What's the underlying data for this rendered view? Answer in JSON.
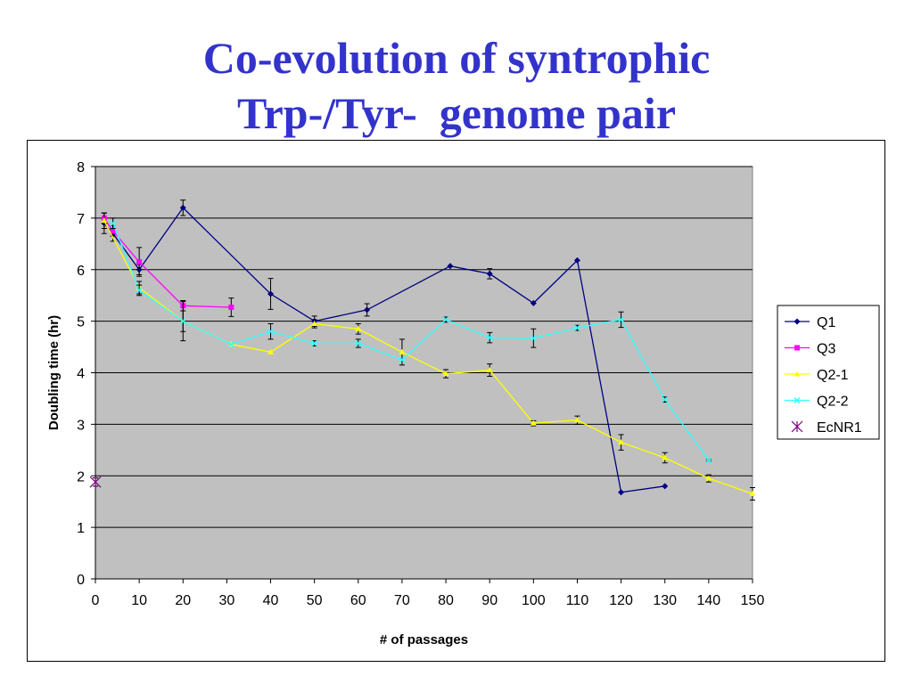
{
  "slide": {
    "title_line1": "Co-evolution of syntrophic",
    "title_line2": "Trp-/Tyr-  genome pair",
    "title_color": "#3333cc"
  },
  "chart_data": {
    "type": "line",
    "title": "",
    "xlabel": "# of passages",
    "ylabel": "Doubling time (hr)",
    "xlim": [
      0,
      150
    ],
    "ylim": [
      0,
      8
    ],
    "x_ticks": [
      0,
      10,
      20,
      30,
      40,
      50,
      60,
      70,
      80,
      90,
      100,
      110,
      120,
      130,
      140,
      150
    ],
    "y_ticks": [
      0,
      1,
      2,
      3,
      4,
      5,
      6,
      7,
      8
    ],
    "grid": "horizontal major lines",
    "plot_background": "#c0c0c0",
    "legend_position": "right",
    "series": [
      {
        "name": "Q1",
        "color": "#000080",
        "marker": "diamond",
        "points": [
          [
            2,
            6.9
          ],
          [
            4,
            6.7
          ],
          [
            10,
            6.0
          ],
          [
            20,
            7.2
          ],
          [
            40,
            5.53
          ],
          [
            50,
            5.0
          ],
          [
            62,
            5.22
          ],
          [
            81,
            6.07
          ],
          [
            90,
            5.92
          ],
          [
            100,
            5.35
          ],
          [
            110,
            6.18
          ],
          [
            120,
            1.68
          ],
          [
            130,
            1.8
          ]
        ],
        "errors": [
          0.2,
          0.15,
          0.1,
          0.15,
          0.3,
          0.1,
          0.12,
          0,
          0.1,
          0,
          0,
          0,
          0
        ]
      },
      {
        "name": "Q3",
        "color": "#ff00ff",
        "marker": "square",
        "points": [
          [
            2,
            7.0
          ],
          [
            4,
            6.75
          ],
          [
            10,
            6.15
          ],
          [
            20,
            5.3
          ],
          [
            31,
            5.27
          ]
        ],
        "errors": [
          0.1,
          0.1,
          0.28,
          0.1,
          0.18
        ]
      },
      {
        "name": "Q2-1",
        "color": "#ffff00",
        "marker": "triangle",
        "points": [
          [
            2,
            6.95
          ],
          [
            10,
            5.65
          ],
          [
            20,
            5.0
          ],
          [
            31,
            4.55
          ],
          [
            40,
            4.4
          ],
          [
            50,
            4.95
          ],
          [
            60,
            4.85
          ],
          [
            70,
            4.4
          ],
          [
            80,
            3.98
          ],
          [
            90,
            4.05
          ],
          [
            100,
            3.02
          ],
          [
            110,
            3.08
          ],
          [
            120,
            2.65
          ],
          [
            130,
            2.35
          ],
          [
            140,
            1.95
          ],
          [
            150,
            1.65
          ]
        ],
        "errors": [
          0.15,
          0.12,
          0.38,
          0,
          0,
          0.08,
          0.1,
          0.25,
          0.08,
          0.12,
          0.05,
          0.08,
          0.15,
          0.1,
          0.07,
          0.12
        ]
      },
      {
        "name": "Q2-2",
        "color": "#33ffff",
        "marker": "x",
        "points": [
          [
            4,
            6.9
          ],
          [
            10,
            5.6
          ],
          [
            20,
            5.0
          ],
          [
            31,
            4.55
          ],
          [
            40,
            4.8
          ],
          [
            50,
            4.57
          ],
          [
            60,
            4.57
          ],
          [
            70,
            4.25
          ],
          [
            80,
            5.03
          ],
          [
            90,
            4.68
          ],
          [
            100,
            4.67
          ],
          [
            110,
            4.87
          ],
          [
            120,
            5.03
          ],
          [
            130,
            3.48
          ],
          [
            140,
            2.3
          ]
        ],
        "errors": [
          0.1,
          0.1,
          0.2,
          0,
          0.15,
          0.05,
          0.08,
          0,
          0.05,
          0.1,
          0.18,
          0.05,
          0.15,
          0.05,
          0.02
        ]
      },
      {
        "name": "EcNR1",
        "color": "#800080",
        "marker": "asterisk",
        "points": [
          [
            0,
            1.88
          ]
        ],
        "errors": [
          0.08
        ]
      }
    ]
  }
}
